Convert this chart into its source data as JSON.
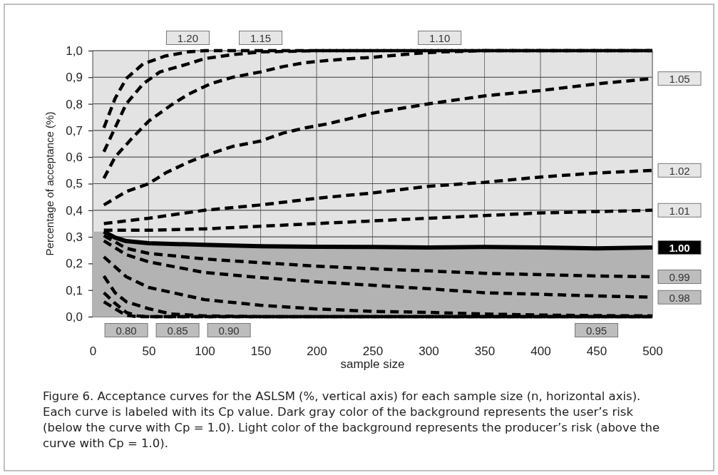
{
  "chart_data": {
    "type": "line",
    "xlabel": "sample size",
    "ylabel": "Percentage of acceptance (%)",
    "xlim": [
      0,
      500
    ],
    "xticks": [
      0,
      50,
      100,
      150,
      200,
      250,
      300,
      350,
      400,
      450,
      500
    ],
    "ylim": [
      0,
      1
    ],
    "yticks": [
      {
        "value": 0,
        "label": "0,0"
      },
      {
        "value": 0.1,
        "label": "0,1"
      },
      {
        "value": 0.2,
        "label": "0,2"
      },
      {
        "value": 0.3,
        "label": "0,3"
      },
      {
        "value": 0.4,
        "label": "0,4"
      },
      {
        "value": 0.5,
        "label": "0,5"
      },
      {
        "value": 0.6,
        "label": "0,6"
      },
      {
        "value": 0.7,
        "label": "0,7"
      },
      {
        "value": 0.8,
        "label": "0,8"
      },
      {
        "value": 0.9,
        "label": "0,9"
      },
      {
        "value": 1,
        "label": "1,0"
      }
    ],
    "grid": true,
    "legend": false,
    "line_style": "dashed",
    "marker": "none",
    "series": [
      {
        "name": "1.20",
        "color": "#000000",
        "x": [
          10,
          20,
          30,
          45,
          65,
          85,
          100,
          150,
          200,
          250,
          300,
          350,
          400,
          450,
          500
        ],
        "values": [
          0.71,
          0.82,
          0.895,
          0.95,
          0.98,
          0.995,
          1,
          1,
          1,
          1,
          1,
          1,
          1,
          1,
          1
        ]
      },
      {
        "name": "1.15",
        "color": "#000000",
        "x": [
          10,
          20,
          30,
          45,
          60,
          85,
          100,
          125,
          150,
          200,
          250,
          300,
          350,
          400,
          450,
          500
        ],
        "values": [
          0.62,
          0.71,
          0.8,
          0.875,
          0.92,
          0.95,
          0.97,
          0.985,
          0.995,
          1,
          1,
          1,
          1,
          1,
          1,
          1
        ]
      },
      {
        "name": "1.10",
        "color": "#000000",
        "x": [
          10,
          20,
          35,
          50,
          70,
          85,
          105,
          125,
          150,
          170,
          190,
          210,
          230,
          250,
          290,
          310,
          350,
          400,
          450,
          500
        ],
        "values": [
          0.52,
          0.6,
          0.67,
          0.735,
          0.795,
          0.835,
          0.875,
          0.9,
          0.92,
          0.94,
          0.955,
          0.963,
          0.97,
          0.975,
          0.99,
          0.995,
          1,
          1,
          1,
          1
        ]
      },
      {
        "name": "1.05",
        "color": "#000000",
        "x": [
          10,
          30,
          50,
          65,
          85,
          100,
          125,
          150,
          170,
          190,
          210,
          230,
          250,
          300,
          350,
          400,
          450,
          500
        ],
        "values": [
          0.42,
          0.47,
          0.5,
          0.54,
          0.58,
          0.605,
          0.64,
          0.66,
          0.69,
          0.71,
          0.725,
          0.745,
          0.765,
          0.8,
          0.83,
          0.85,
          0.875,
          0.895
        ]
      },
      {
        "name": "1.02",
        "color": "#000000",
        "x": [
          10,
          50,
          100,
          150,
          200,
          250,
          300,
          350,
          400,
          450,
          500
        ],
        "values": [
          0.35,
          0.37,
          0.4,
          0.42,
          0.445,
          0.465,
          0.49,
          0.505,
          0.525,
          0.54,
          0.55
        ]
      },
      {
        "name": "1.01",
        "color": "#000000",
        "x": [
          10,
          50,
          100,
          150,
          200,
          250,
          300,
          350,
          400,
          450,
          500
        ],
        "values": [
          0.325,
          0.325,
          0.33,
          0.34,
          0.35,
          0.36,
          0.37,
          0.38,
          0.39,
          0.395,
          0.4
        ]
      },
      {
        "name": "1.00",
        "color": "#000000",
        "line_style": "solid",
        "x": [
          10,
          20,
          30,
          50,
          100,
          150,
          200,
          250,
          300,
          350,
          400,
          450,
          500
        ],
        "values": [
          0.32,
          0.297,
          0.284,
          0.276,
          0.27,
          0.265,
          0.263,
          0.262,
          0.26,
          0.262,
          0.26,
          0.257,
          0.26
        ]
      },
      {
        "name": "0.99",
        "color": "#000000",
        "x": [
          10,
          30,
          50,
          100,
          150,
          200,
          250,
          300,
          350,
          400,
          450,
          500
        ],
        "values": [
          0.305,
          0.257,
          0.238,
          0.217,
          0.203,
          0.19,
          0.18,
          0.172,
          0.163,
          0.158,
          0.153,
          0.15
        ]
      },
      {
        "name": "0.98",
        "color": "#000000",
        "x": [
          10,
          30,
          50,
          100,
          150,
          200,
          250,
          300,
          350,
          400,
          450,
          500
        ],
        "values": [
          0.285,
          0.233,
          0.206,
          0.166,
          0.147,
          0.131,
          0.118,
          0.105,
          0.09,
          0.084,
          0.078,
          0.073
        ]
      },
      {
        "name": "0.95",
        "color": "#000000",
        "x": [
          10,
          30,
          50,
          100,
          150,
          200,
          250,
          300,
          350,
          400,
          450,
          500
        ],
        "values": [
          0.225,
          0.15,
          0.11,
          0.064,
          0.043,
          0.029,
          0.02,
          0.016,
          0.01,
          0.006,
          0.004,
          0.003
        ]
      },
      {
        "name": "0.90",
        "color": "#000000",
        "x": [
          10,
          20,
          30,
          50,
          70,
          100,
          150,
          200,
          300,
          400,
          500
        ],
        "values": [
          0.153,
          0.09,
          0.056,
          0.03,
          0.01,
          0.003,
          0,
          0,
          0,
          0,
          0
        ]
      },
      {
        "name": "0.85",
        "color": "#000000",
        "x": [
          10,
          20,
          30,
          40,
          50,
          100,
          200,
          300,
          400,
          500
        ],
        "values": [
          0.09,
          0.05,
          0.016,
          0.003,
          0,
          0,
          0,
          0,
          0,
          0
        ]
      },
      {
        "name": "0.80",
        "color": "#000000",
        "x": [
          10,
          20,
          30,
          40,
          50,
          100,
          200,
          300,
          400,
          500
        ],
        "values": [
          0.056,
          0.03,
          0.005,
          0,
          0,
          0,
          0,
          0,
          0,
          0
        ]
      }
    ],
    "annotations": [
      "Figure 6. Acceptance curves for the ASLSM (%, vertical axis) for each sample size (n, horizontal axis). Each curve is labeled with its Cp value. Dark gray color of the background represents the user’s risk (below the curve with Cp = 1.0). Light color of the background represents the producer’s risk (above the curve with Cp = 1.0)."
    ]
  }
}
